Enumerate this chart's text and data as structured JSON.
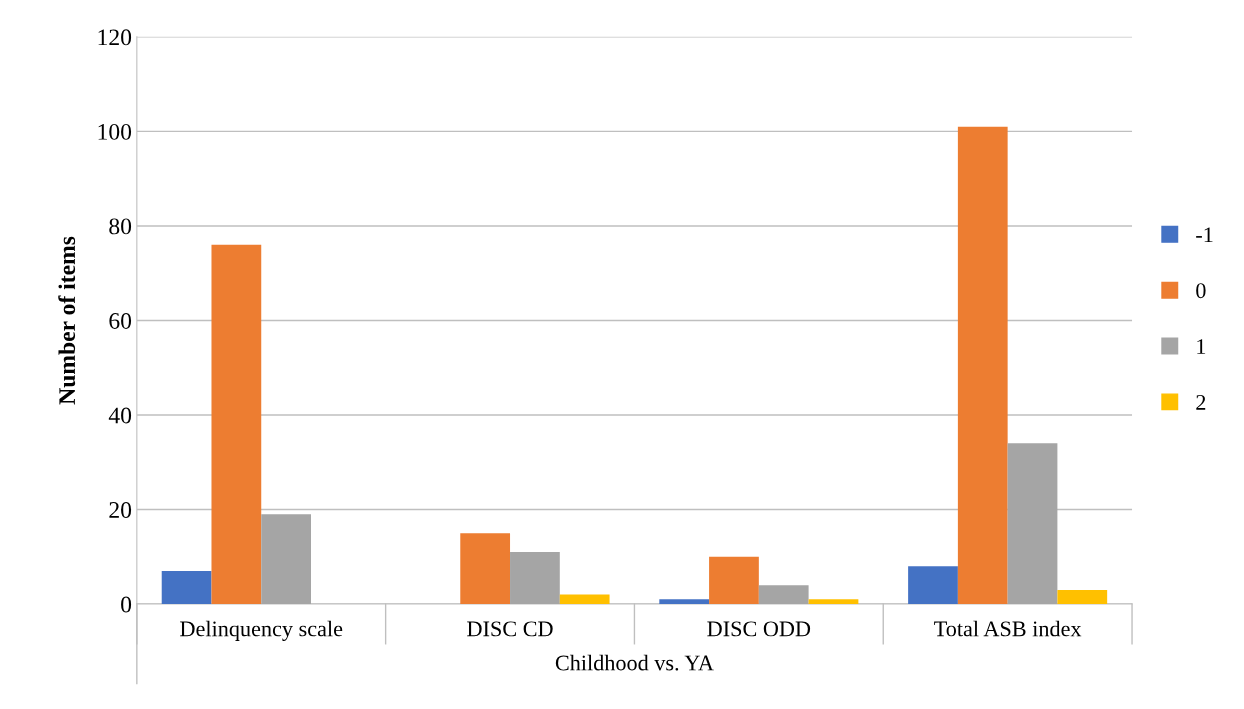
{
  "chart_data": {
    "type": "bar",
    "ylabel": "Number of items",
    "xlabel": "Childhood vs. YA",
    "categories": [
      "Delinquency scale",
      "DISC CD",
      "DISC ODD",
      "Total ASB index"
    ],
    "series": [
      {
        "name": "-1",
        "color": "#4472c4",
        "values": [
          7,
          0,
          1,
          8
        ]
      },
      {
        "name": "0",
        "color": "#ed7d31",
        "values": [
          76,
          15,
          10,
          101
        ]
      },
      {
        "name": "1",
        "color": "#a5a5a5",
        "values": [
          19,
          11,
          4,
          34
        ]
      },
      {
        "name": "2",
        "color": "#ffc000",
        "values": [
          0,
          2,
          1,
          3
        ]
      }
    ],
    "ylim": [
      0,
      120
    ],
    "yticks": [
      0,
      20,
      40,
      60,
      80,
      100,
      120
    ],
    "grid": "y",
    "legend": "right"
  }
}
